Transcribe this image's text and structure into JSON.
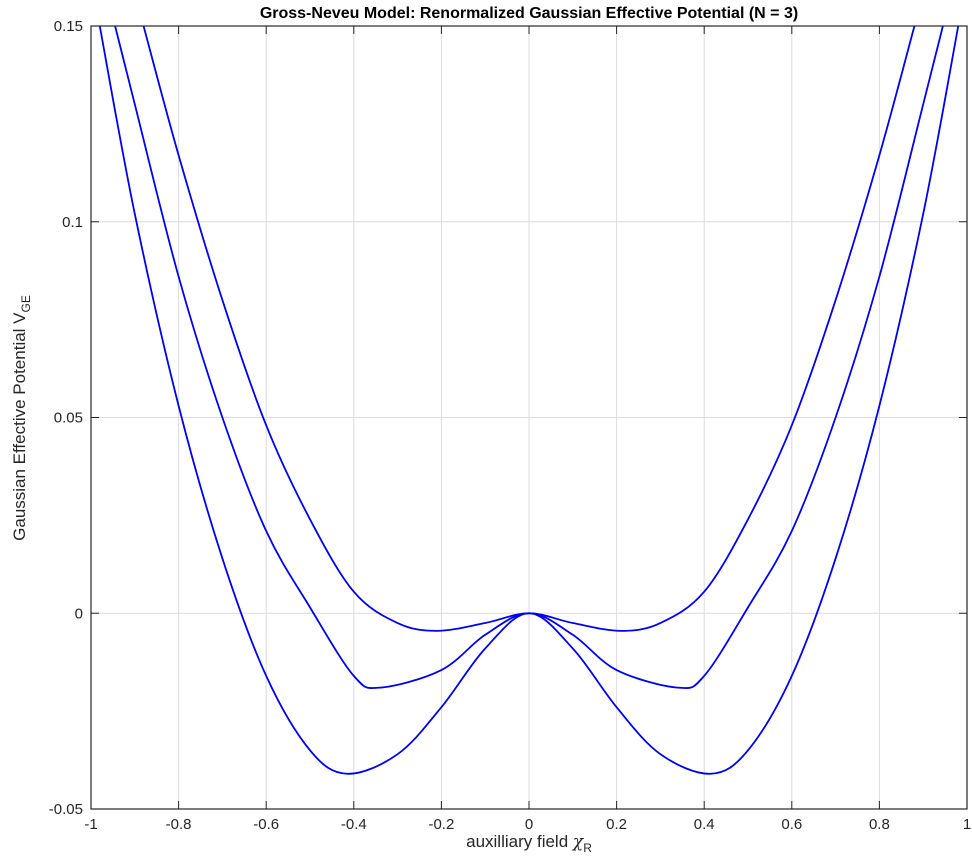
{
  "chart_data": {
    "type": "line",
    "title": "Gross-Neveu Model: Renormalized Gaussian Effective Potential (N = 3)",
    "xlabel": {
      "main": "auxilliary field ",
      "symbol": "χ",
      "subscript": "R"
    },
    "ylabel": {
      "main": "Gaussian Effective Potential V",
      "subscript": "GE"
    },
    "xlim": [
      -1,
      1
    ],
    "ylim": [
      -0.05,
      0.15
    ],
    "x_ticks": [
      -1,
      -0.8,
      -0.6,
      -0.4,
      -0.2,
      0,
      0.2,
      0.4,
      0.6,
      0.8,
      1
    ],
    "x_tick_labels": [
      "-1",
      "-0.8",
      "-0.6",
      "-0.4",
      "-0.2",
      "0",
      "0.2",
      "0.4",
      "0.6",
      "0.8",
      "1"
    ],
    "y_ticks": [
      -0.05,
      0,
      0.05,
      0.1,
      0.15
    ],
    "y_tick_labels": [
      "-0.05",
      "0",
      "0.05",
      "0.1",
      "0.15"
    ],
    "grid": true,
    "line_color": "#0000ee",
    "series": [
      {
        "x": [
          -0.88,
          -0.8,
          -0.7,
          -0.6,
          -0.5,
          -0.4,
          -0.3,
          -0.21,
          -0.1,
          0,
          0.1,
          0.21,
          0.3,
          0.4,
          0.5,
          0.6,
          0.7,
          0.8,
          0.88
        ],
        "y": [
          0.15,
          0.117,
          0.08,
          0.048,
          0.024,
          0.0055,
          -0.0025,
          -0.0045,
          -0.0025,
          0,
          -0.0025,
          -0.0045,
          -0.0025,
          0.0055,
          0.024,
          0.048,
          0.08,
          0.117,
          0.15
        ]
      },
      {
        "x": [
          -0.945,
          -0.9,
          -0.8,
          -0.7,
          -0.6,
          -0.5,
          -0.4,
          -0.34,
          -0.2,
          -0.1,
          0,
          0.1,
          0.2,
          0.34,
          0.4,
          0.5,
          0.6,
          0.7,
          0.8,
          0.9,
          0.945
        ],
        "y": [
          0.15,
          0.13,
          0.086,
          0.05,
          0.021,
          0.0015,
          -0.016,
          -0.019,
          -0.0145,
          -0.0055,
          0,
          -0.0055,
          -0.0145,
          -0.019,
          -0.016,
          0.0015,
          0.021,
          0.05,
          0.086,
          0.13,
          0.15
        ]
      },
      {
        "x": [
          -0.98,
          -0.9,
          -0.8,
          -0.7,
          -0.6,
          -0.5,
          -0.415,
          -0.3,
          -0.2,
          -0.1,
          0,
          0.1,
          0.2,
          0.3,
          0.415,
          0.5,
          0.6,
          0.7,
          0.8,
          0.9,
          0.98
        ],
        "y": [
          0.15,
          0.102,
          0.053,
          0.014,
          -0.016,
          -0.035,
          -0.041,
          -0.036,
          -0.024,
          -0.009,
          0,
          -0.009,
          -0.024,
          -0.036,
          -0.041,
          -0.035,
          -0.016,
          0.014,
          0.053,
          0.102,
          0.15
        ]
      }
    ]
  }
}
